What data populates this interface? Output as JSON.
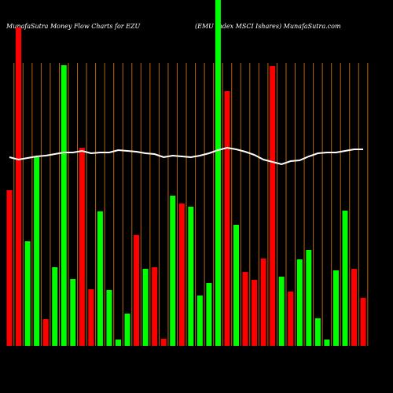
{
  "chart_data": {
    "type": "bar",
    "title": "MunafaSutra  Money Flow  Charts for EZU",
    "subtitle": "(EMU Index MSCI Ishares) MunafaSutra.com",
    "values": [
      198,
      405,
      133,
      240,
      34,
      100,
      357,
      85,
      252,
      72,
      171,
      71,
      8,
      41,
      141,
      98,
      100,
      9,
      191,
      181,
      177,
      64,
      80,
      440,
      324,
      154,
      94,
      84,
      111,
      356,
      88,
      69,
      110,
      122,
      35,
      8,
      96,
      172,
      98,
      61
    ],
    "colors": [
      "#ff0000",
      "#ff0000",
      "#00ff00",
      "#00ff00",
      "#ff0000",
      "#00ff00",
      "#00ff00",
      "#00ff00",
      "#ff0000",
      "#ff0000",
      "#00ff00",
      "#00ff00",
      "#00ff00",
      "#00ff00",
      "#ff0000",
      "#00ff00",
      "#ff0000",
      "#ff0000",
      "#00ff00",
      "#ff0000",
      "#00ff00",
      "#00ff00",
      "#00ff00",
      "#00ff00",
      "#ff0000",
      "#00ff00",
      "#ff0000",
      "#ff0000",
      "#ff0000",
      "#ff0000",
      "#00ff00",
      "#ff0000",
      "#00ff00",
      "#00ff00",
      "#00ff00",
      "#00ff00",
      "#00ff00",
      "#00ff00",
      "#ff0000",
      "#ff0000"
    ],
    "line": [
      240,
      237,
      239,
      241,
      242,
      244,
      246,
      246,
      248,
      245,
      246,
      246,
      249,
      248,
      247,
      245,
      244,
      240,
      242,
      241,
      240,
      242,
      245,
      249,
      252,
      250,
      247,
      243,
      237,
      234,
      231,
      235,
      236,
      241,
      245,
      246,
      246,
      248,
      250,
      250
    ],
    "line_color": "#ffffff",
    "ylim": [
      0,
      440
    ]
  }
}
